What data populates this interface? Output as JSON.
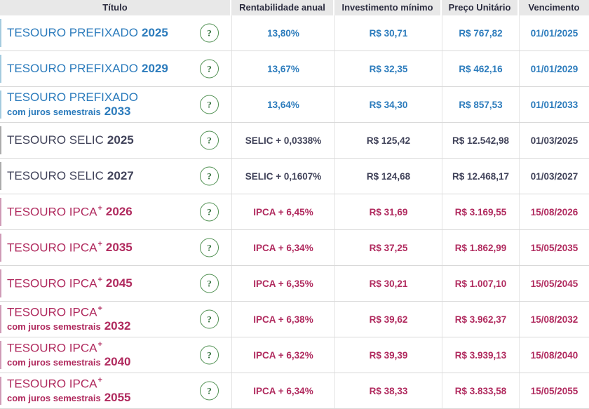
{
  "table": {
    "columns": [
      {
        "label": "Título"
      },
      {
        "label": "Rentabilidade anual"
      },
      {
        "label": "Investimento mínimo"
      },
      {
        "label": "Preço Unitário"
      },
      {
        "label": "Vencimento"
      }
    ],
    "rows": [
      {
        "kind": "prefixado",
        "name": "TESOURO PREFIXADO",
        "sup": "",
        "sub": "",
        "year": "2025",
        "rate": "13,80%",
        "min_investment": "R$ 30,71",
        "unit_price": "R$ 767,82",
        "maturity": "01/01/2025"
      },
      {
        "kind": "prefixado",
        "name": "TESOURO PREFIXADO",
        "sup": "",
        "sub": "",
        "year": "2029",
        "rate": "13,67%",
        "min_investment": "R$ 32,35",
        "unit_price": "R$ 462,16",
        "maturity": "01/01/2029"
      },
      {
        "kind": "prefixado",
        "name": "TESOURO PREFIXADO",
        "sup": "",
        "sub": "com juros semestrais",
        "year": "2033",
        "rate": "13,64%",
        "min_investment": "R$ 34,30",
        "unit_price": "R$ 857,53",
        "maturity": "01/01/2033"
      },
      {
        "kind": "selic",
        "name": "TESOURO SELIC",
        "sup": "",
        "sub": "",
        "year": "2025",
        "rate": "SELIC + 0,0338%",
        "min_investment": "R$ 125,42",
        "unit_price": "R$ 12.542,98",
        "maturity": "01/03/2025"
      },
      {
        "kind": "selic",
        "name": "TESOURO SELIC",
        "sup": "",
        "sub": "",
        "year": "2027",
        "rate": "SELIC + 0,1607%",
        "min_investment": "R$ 124,68",
        "unit_price": "R$ 12.468,17",
        "maturity": "01/03/2027"
      },
      {
        "kind": "ipca",
        "name": "TESOURO IPCA",
        "sup": "+",
        "sub": "",
        "year": "2026",
        "rate": "IPCA + 6,45%",
        "min_investment": "R$ 31,69",
        "unit_price": "R$ 3.169,55",
        "maturity": "15/08/2026"
      },
      {
        "kind": "ipca",
        "name": "TESOURO IPCA",
        "sup": "+",
        "sub": "",
        "year": "2035",
        "rate": "IPCA + 6,34%",
        "min_investment": "R$ 37,25",
        "unit_price": "R$ 1.862,99",
        "maturity": "15/05/2035"
      },
      {
        "kind": "ipca",
        "name": "TESOURO IPCA",
        "sup": "+",
        "sub": "",
        "year": "2045",
        "rate": "IPCA + 6,35%",
        "min_investment": "R$ 30,21",
        "unit_price": "R$ 1.007,10",
        "maturity": "15/05/2045"
      },
      {
        "kind": "ipca",
        "name": "TESOURO IPCA",
        "sup": "+",
        "sub": "com juros semestrais",
        "year": "2032",
        "rate": "IPCA + 6,38%",
        "min_investment": "R$ 39,62",
        "unit_price": "R$ 3.962,37",
        "maturity": "15/08/2032"
      },
      {
        "kind": "ipca",
        "name": "TESOURO IPCA",
        "sup": "+",
        "sub": "com juros semestrais",
        "year": "2040",
        "rate": "IPCA + 6,32%",
        "min_investment": "R$ 39,39",
        "unit_price": "R$ 3.939,13",
        "maturity": "15/08/2040"
      },
      {
        "kind": "ipca",
        "name": "TESOURO IPCA",
        "sup": "+",
        "sub": "com juros semestrais",
        "year": "2055",
        "rate": "IPCA + 6,34%",
        "min_investment": "R$ 38,33",
        "unit_price": "R$ 3.833,58",
        "maturity": "15/05/2055"
      }
    ]
  },
  "help_icon": {
    "glyph": "?"
  },
  "colors": {
    "row_text": {
      "prefixado": "#2b7bbc",
      "selic": "#41435a",
      "ipca": "#b02a5e"
    },
    "row_accent": {
      "prefixado": "#a5cbdf",
      "selic": "#ababab",
      "ipca": "#cf9bb6"
    },
    "header_bg": "#e8e8e8",
    "header_text": "#2b2c3f",
    "row_border": "#d9d9d9",
    "col_border": "#e4e4e4",
    "help_border": "#4f9051",
    "help_text": "#2b6b35"
  }
}
